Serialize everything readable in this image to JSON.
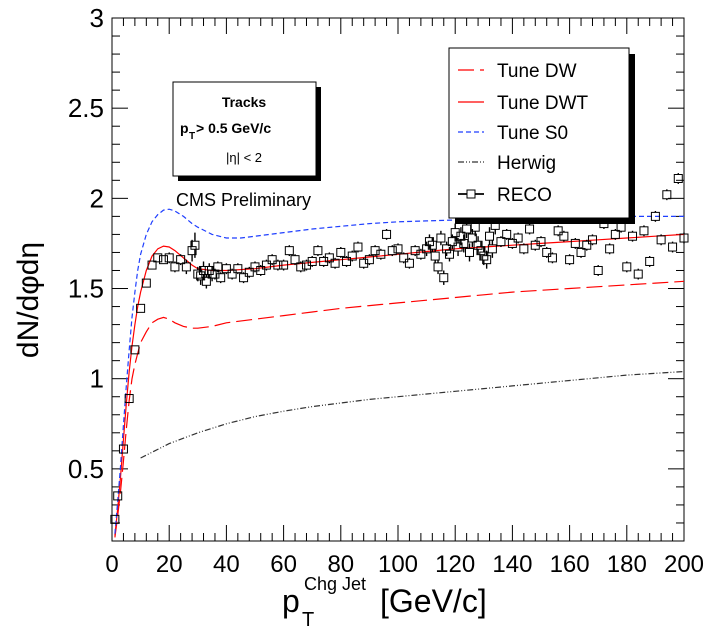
{
  "chart_data": {
    "type": "line",
    "xlabel": {
      "main": "p",
      "sub": "T",
      "sup": "Chg Jet",
      "unit": " [GeV/c]"
    },
    "ylabel": "dN/dφdη",
    "xlim": [
      0,
      200
    ],
    "ylim": [
      0.1,
      3
    ],
    "x_ticks": [
      "0",
      "20",
      "40",
      "60",
      "80",
      "100",
      "120",
      "140",
      "160",
      "180",
      "200"
    ],
    "y_ticks": [
      "0.5",
      "1",
      "1.5",
      "2",
      "2.5",
      "3"
    ],
    "grid": false,
    "legend_position": "top-right",
    "infobox": {
      "line1": "Tracks",
      "line2": {
        "main": "p",
        "sub": "T",
        "rest": " > 0.5 GeV/c"
      },
      "line3": "|η| < 2"
    },
    "annotation": "CMS Preliminary",
    "series": [
      {
        "name": "Tune DW",
        "color": "#ff0000",
        "style": "long-dash",
        "x": [
          1,
          2,
          3,
          4,
          5,
          6,
          7,
          8,
          9,
          10,
          12,
          14,
          16,
          18,
          20,
          22,
          25,
          28,
          30,
          35,
          40,
          50,
          60,
          70,
          80,
          90,
          100,
          110,
          120,
          130,
          140,
          150,
          160,
          170,
          180,
          190,
          200
        ],
        "y": [
          0.12,
          0.24,
          0.38,
          0.54,
          0.72,
          0.88,
          1.0,
          1.08,
          1.14,
          1.2,
          1.26,
          1.31,
          1.33,
          1.34,
          1.33,
          1.31,
          1.29,
          1.28,
          1.28,
          1.29,
          1.31,
          1.33,
          1.35,
          1.37,
          1.39,
          1.405,
          1.42,
          1.435,
          1.45,
          1.465,
          1.48,
          1.49,
          1.5,
          1.51,
          1.52,
          1.53,
          1.54
        ]
      },
      {
        "name": "Tune DWT",
        "color": "#ff0000",
        "style": "solid",
        "x": [
          1,
          2,
          3,
          4,
          5,
          6,
          7,
          8,
          9,
          10,
          12,
          14,
          16,
          18,
          20,
          22,
          25,
          28,
          30,
          35,
          40,
          50,
          60,
          70,
          80,
          90,
          100,
          110,
          120,
          130,
          140,
          150,
          160,
          170,
          180,
          190,
          200
        ],
        "y": [
          0.13,
          0.28,
          0.46,
          0.66,
          0.86,
          1.04,
          1.18,
          1.3,
          1.4,
          1.48,
          1.6,
          1.68,
          1.72,
          1.735,
          1.73,
          1.71,
          1.67,
          1.63,
          1.61,
          1.6,
          1.6,
          1.61,
          1.63,
          1.645,
          1.66,
          1.675,
          1.69,
          1.705,
          1.72,
          1.73,
          1.74,
          1.75,
          1.76,
          1.77,
          1.78,
          1.79,
          1.8
        ]
      },
      {
        "name": "Tune S0",
        "color": "#1f3fff",
        "style": "short-dash",
        "x": [
          1,
          2,
          3,
          4,
          5,
          6,
          7,
          8,
          9,
          10,
          12,
          14,
          16,
          18,
          20,
          22,
          25,
          28,
          30,
          35,
          40,
          45,
          50,
          60,
          70,
          80,
          90,
          100,
          110,
          120,
          130,
          140,
          150,
          160,
          170,
          180,
          190,
          200
        ],
        "y": [
          0.14,
          0.32,
          0.52,
          0.74,
          0.96,
          1.16,
          1.34,
          1.48,
          1.6,
          1.69,
          1.8,
          1.87,
          1.91,
          1.935,
          1.94,
          1.93,
          1.9,
          1.86,
          1.84,
          1.8,
          1.78,
          1.78,
          1.79,
          1.81,
          1.83,
          1.845,
          1.86,
          1.87,
          1.875,
          1.88,
          1.885,
          1.89,
          1.895,
          1.9,
          1.9,
          1.9,
          1.9,
          1.9
        ]
      },
      {
        "name": "Herwig",
        "color": "#333333",
        "style": "dash-dot-dot",
        "x": [
          10,
          15,
          20,
          30,
          40,
          50,
          60,
          70,
          80,
          90,
          100,
          110,
          120,
          130,
          140,
          150,
          160,
          170,
          180,
          190,
          200
        ],
        "y": [
          0.56,
          0.6,
          0.64,
          0.7,
          0.75,
          0.79,
          0.82,
          0.845,
          0.865,
          0.885,
          0.9,
          0.915,
          0.93,
          0.945,
          0.96,
          0.975,
          0.99,
          1.005,
          1.02,
          1.03,
          1.04
        ]
      }
    ],
    "data_points": {
      "name": "RECO",
      "x": [
        1,
        2,
        4,
        6,
        8,
        10,
        12,
        14,
        16,
        18,
        20,
        22,
        24,
        26,
        28,
        29,
        30,
        31,
        32,
        33,
        34,
        35,
        36,
        37,
        38,
        40,
        42,
        44,
        46,
        48,
        50,
        52,
        54,
        56,
        58,
        60,
        62,
        64,
        66,
        68,
        70,
        72,
        74,
        76,
        78,
        80,
        82,
        84,
        86,
        88,
        90,
        92,
        94,
        96,
        98,
        100,
        102,
        104,
        106,
        108,
        110,
        111,
        112,
        113,
        114,
        115,
        116,
        117,
        118,
        119,
        120,
        121,
        122,
        123,
        124,
        125,
        126,
        127,
        128,
        129,
        130,
        131,
        132,
        133,
        134,
        136,
        138,
        140,
        142,
        144,
        146,
        148,
        150,
        152,
        154,
        156,
        158,
        160,
        162,
        164,
        166,
        168,
        170,
        172,
        174,
        176,
        178,
        180,
        182,
        184,
        186,
        188,
        190,
        192,
        194,
        196,
        198,
        200
      ],
      "y": [
        0.22,
        0.35,
        0.61,
        0.89,
        1.16,
        1.39,
        1.53,
        1.63,
        1.67,
        1.66,
        1.67,
        1.62,
        1.66,
        1.62,
        1.71,
        1.74,
        1.58,
        1.57,
        1.6,
        1.54,
        1.6,
        1.58,
        1.58,
        1.62,
        1.56,
        1.61,
        1.58,
        1.61,
        1.56,
        1.59,
        1.62,
        1.6,
        1.63,
        1.66,
        1.63,
        1.63,
        1.71,
        1.66,
        1.62,
        1.63,
        1.65,
        1.71,
        1.65,
        1.67,
        1.64,
        1.7,
        1.65,
        1.68,
        1.73,
        1.64,
        1.66,
        1.71,
        1.69,
        1.8,
        1.71,
        1.72,
        1.67,
        1.64,
        1.71,
        1.69,
        1.72,
        1.76,
        1.74,
        1.68,
        1.62,
        1.78,
        1.56,
        1.72,
        1.69,
        1.76,
        1.81,
        1.73,
        1.79,
        1.75,
        1.83,
        1.7,
        1.78,
        1.84,
        1.74,
        1.71,
        1.68,
        1.66,
        1.79,
        1.72,
        1.85,
        1.76,
        1.8,
        1.75,
        1.78,
        1.72,
        1.83,
        1.74,
        1.76,
        1.7,
        1.67,
        1.82,
        1.79,
        1.66,
        1.75,
        1.7,
        1.74,
        1.77,
        1.6,
        1.86,
        1.72,
        1.8,
        1.84,
        1.62,
        1.79,
        1.58,
        1.82,
        1.65,
        1.9,
        1.77,
        2.02,
        1.73,
        2.11,
        1.78
      ],
      "err": [
        0.02,
        0.02,
        0.02,
        0.02,
        0.02,
        0.02,
        0.02,
        0.02,
        0.02,
        0.02,
        0.03,
        0.03,
        0.03,
        0.04,
        0.06,
        0.07,
        0.04,
        0.05,
        0.05,
        0.04,
        0.04,
        0.04,
        0.03,
        0.03,
        0.03,
        0.03,
        0.03,
        0.03,
        0.03,
        0.03,
        0.03,
        0.03,
        0.03,
        0.03,
        0.03,
        0.03,
        0.03,
        0.03,
        0.03,
        0.03,
        0.03,
        0.03,
        0.03,
        0.03,
        0.03,
        0.03,
        0.03,
        0.03,
        0.03,
        0.03,
        0.03,
        0.03,
        0.03,
        0.03,
        0.03,
        0.03,
        0.03,
        0.03,
        0.03,
        0.03,
        0.04,
        0.04,
        0.04,
        0.04,
        0.04,
        0.04,
        0.04,
        0.04,
        0.04,
        0.04,
        0.05,
        0.05,
        0.05,
        0.05,
        0.05,
        0.05,
        0.05,
        0.05,
        0.05,
        0.05,
        0.05,
        0.05,
        0.05,
        0.05,
        0.05,
        0.03,
        0.03,
        0.03,
        0.03,
        0.03,
        0.03,
        0.03,
        0.03,
        0.03,
        0.03,
        0.03,
        0.03,
        0.03,
        0.03,
        0.03,
        0.03,
        0.03,
        0.03,
        0.03,
        0.03,
        0.03,
        0.03,
        0.03,
        0.03,
        0.03,
        0.03,
        0.03,
        0.03,
        0.03,
        0.03,
        0.03,
        0.03,
        0.03
      ]
    }
  }
}
